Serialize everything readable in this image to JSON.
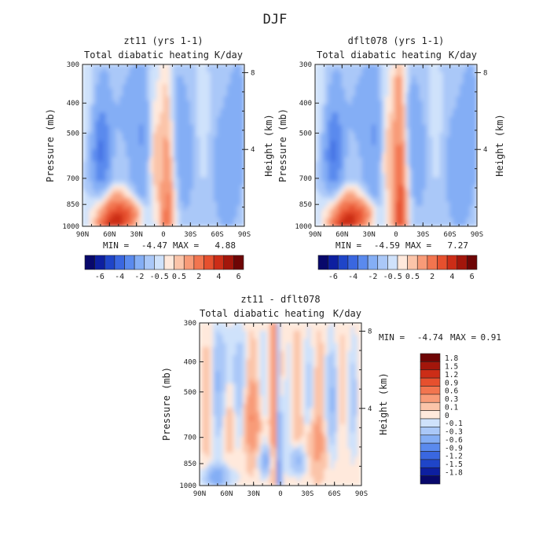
{
  "figure_title": "DJF",
  "chart_data": [
    {
      "type": "heatmap",
      "title": "zt11 (yrs 1-1)",
      "subtitle_left": "Total diabatic heating",
      "subtitle_right": "K/day",
      "ylabel": "Pressure (mb)",
      "ylabel_right": "Height (km)",
      "xticks": [
        "90N",
        "60N",
        "30N",
        "0",
        "30S",
        "60S",
        "90S"
      ],
      "yticks": [
        "300",
        "400",
        "500",
        "700",
        "850",
        "1000"
      ],
      "yticks_right": [
        "8",
        "4"
      ],
      "x_range": [
        90,
        -90
      ],
      "y_range_mb": [
        1000,
        300
      ],
      "min": -4.47,
      "max": 4.88,
      "min_label": "MIN =",
      "max_label": "MAX =",
      "min_text": "-4.47",
      "max_text": "4.88"
    },
    {
      "type": "heatmap",
      "title": "dflt078 (yrs 1-1)",
      "subtitle_left": "Total diabatic heating",
      "subtitle_right": "K/day",
      "ylabel": "Pressure (mb)",
      "ylabel_right": "Height (km)",
      "xticks": [
        "90N",
        "60N",
        "30N",
        "0",
        "30S",
        "60S",
        "90S"
      ],
      "yticks": [
        "300",
        "400",
        "500",
        "700",
        "850",
        "1000"
      ],
      "yticks_right": [
        "8",
        "4"
      ],
      "x_range": [
        90,
        -90
      ],
      "y_range_mb": [
        1000,
        300
      ],
      "min": -4.59,
      "max": 7.27,
      "min_label": "MIN =",
      "max_label": "MAX =",
      "min_text": "-4.59",
      "max_text": "7.27"
    },
    {
      "type": "heatmap",
      "title": "zt11 - dflt078",
      "subtitle_left": "Total diabatic heating",
      "subtitle_right": "K/day",
      "ylabel": "Pressure (mb)",
      "ylabel_right": "Height (km)",
      "xticks": [
        "90N",
        "60N",
        "30N",
        "0",
        "30S",
        "60S",
        "90S"
      ],
      "yticks": [
        "300",
        "400",
        "500",
        "700",
        "850",
        "1000"
      ],
      "yticks_right": [
        "8",
        "4"
      ],
      "x_range": [
        90,
        -90
      ],
      "y_range_mb": [
        1000,
        300
      ],
      "min": -4.74,
      "max": 0.91,
      "min_label": "MIN =",
      "max_label": "MAX =",
      "min_text": "-4.74",
      "max_text": "0.91"
    }
  ],
  "colorbar_top": {
    "labels": [
      "-6",
      "-4",
      "-2",
      "-0.5",
      "0.5",
      "2",
      "4",
      "6"
    ],
    "colors": [
      "#08086b",
      "#0d1fa0",
      "#1f45c8",
      "#3a67e0",
      "#5a8aee",
      "#84aef5",
      "#aac8f8",
      "#cfe2fb",
      "#ffe9dc",
      "#fbc4a9",
      "#f89b78",
      "#f2754f",
      "#e6502e",
      "#cc2d17",
      "#a3160b",
      "#6e0505"
    ]
  },
  "colorbar_diff": {
    "labels": [
      "1.8",
      "1.5",
      "1.2",
      "0.9",
      "0.6",
      "0.3",
      "0.1",
      "0",
      "-0.1",
      "-0.3",
      "-0.6",
      "-0.9",
      "-1.2",
      "-1.5",
      "-1.8"
    ],
    "colors": [
      "#6e0505",
      "#a3160b",
      "#cc2d17",
      "#e6502e",
      "#f2754f",
      "#f89b78",
      "#fbc4a9",
      "#ffe9dc",
      "#cfe2fb",
      "#aac8f8",
      "#84aef5",
      "#5a8aee",
      "#3a67e0",
      "#1f45c8",
      "#0d1fa0",
      "#08086b"
    ]
  }
}
